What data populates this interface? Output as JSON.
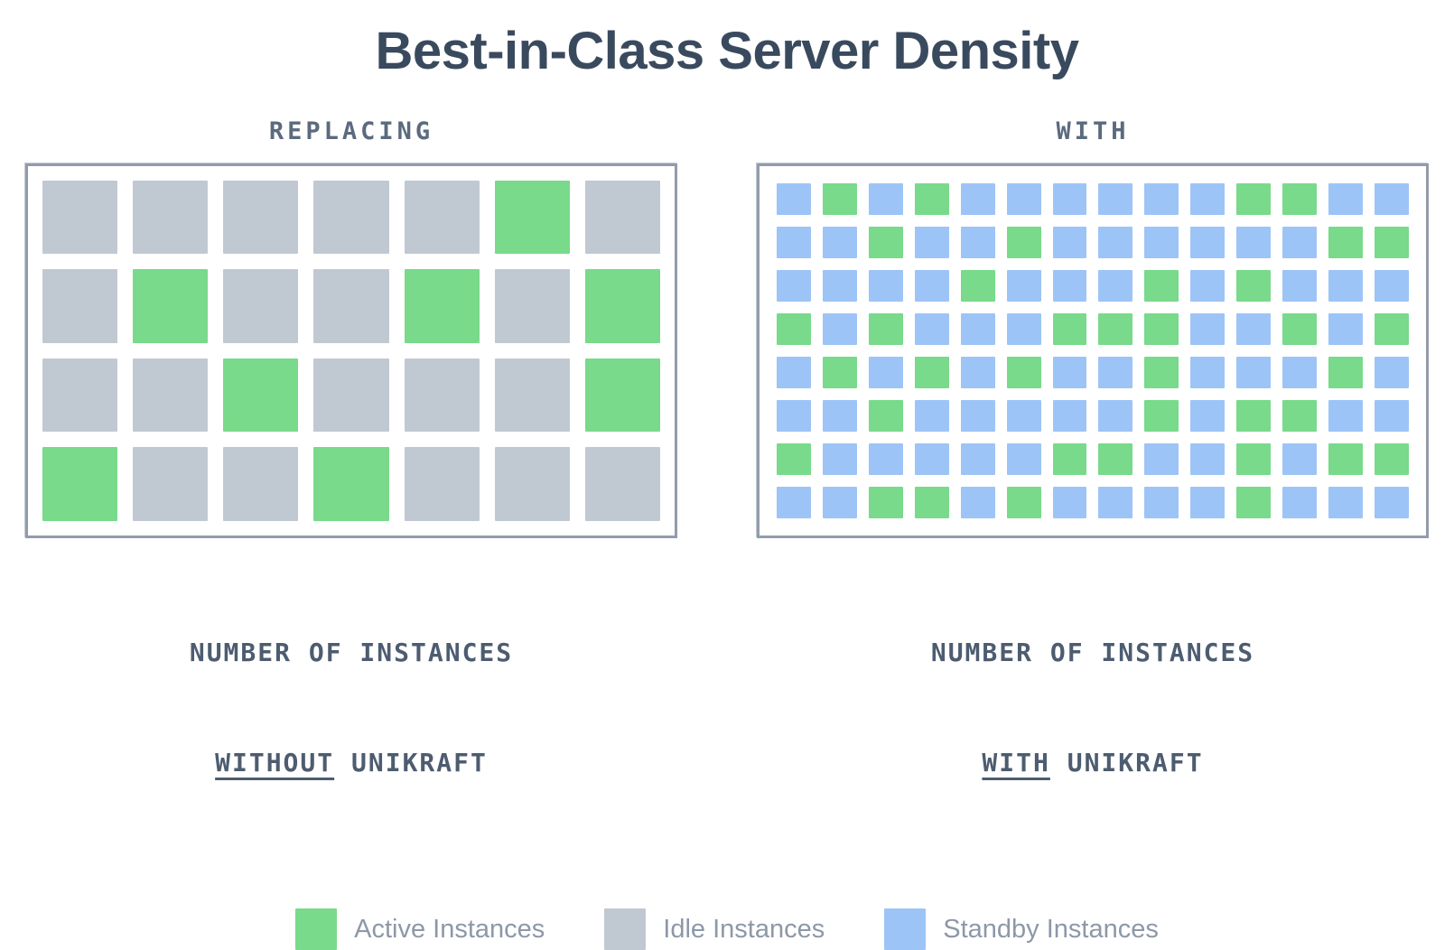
{
  "title": "Best-in-Class Server Density",
  "cell_types": {
    "A": "active",
    "I": "idle",
    "S": "standby"
  },
  "colors": {
    "active": "#78da8a",
    "idle": "#c0c9d2",
    "standby": "#9dc4f6",
    "title_text": "#3a4a5e",
    "heading_text": "#5c6a7e",
    "caption_text": "#4d5c70",
    "legend_text": "#8d98a8",
    "panel_border": "#929cab",
    "background": "#ffffff"
  },
  "panels": [
    {
      "id": "without-unikraft",
      "heading": "REPLACING",
      "caption": {
        "line1": "NUMBER OF INSTANCES",
        "underline": "WITHOUT",
        "after": " UNIKRAFT"
      },
      "grid": {
        "columns": 7,
        "rows": [
          "IIIIIAI",
          "IAIIAIA",
          "IIAIIIA",
          "AIIAIII"
        ]
      }
    },
    {
      "id": "with-unikraft",
      "heading": "WITH",
      "caption": {
        "line1": "NUMBER OF INSTANCES",
        "underline": "WITH",
        "after": " UNIKRAFT"
      },
      "grid": {
        "columns": 14,
        "rows": [
          "SASASSSSSSAASS",
          "SSASSASSSSSSAA",
          "SSSSASSSASASSS",
          "ASASSSAAASSASA",
          "SASASASSASSSAS",
          "SSASSSSSASAASS",
          "ASSSSSAASSASAA",
          "SSAASASSSSASSS"
        ]
      }
    }
  ],
  "legend": [
    {
      "key": "active",
      "label": "Active Instances",
      "color": "#78da8a"
    },
    {
      "key": "idle",
      "label": "Idle Instances",
      "color": "#c0c9d2"
    },
    {
      "key": "standby",
      "label": "Standby Instances",
      "color": "#9dc4f6"
    }
  ],
  "chart_data": [
    {
      "type": "heatmap",
      "title": "REPLACING",
      "subtitle": "NUMBER OF INSTANCES WITHOUT UNIKRAFT",
      "columns": 7,
      "rows": 4,
      "cell_values": [
        [
          "idle",
          "idle",
          "idle",
          "idle",
          "idle",
          "active",
          "idle"
        ],
        [
          "idle",
          "active",
          "idle",
          "idle",
          "active",
          "idle",
          "active"
        ],
        [
          "idle",
          "idle",
          "active",
          "idle",
          "idle",
          "idle",
          "active"
        ],
        [
          "active",
          "idle",
          "idle",
          "active",
          "idle",
          "idle",
          "idle"
        ]
      ],
      "counts": {
        "active": 8,
        "idle": 20,
        "standby": 0,
        "total": 28
      },
      "legend_position": "bottom"
    },
    {
      "type": "heatmap",
      "title": "WITH",
      "subtitle": "NUMBER OF INSTANCES WITH UNIKRAFT",
      "columns": 14,
      "rows": 8,
      "cell_values": [
        [
          "standby",
          "active",
          "standby",
          "active",
          "standby",
          "standby",
          "standby",
          "standby",
          "standby",
          "standby",
          "active",
          "active",
          "standby",
          "standby"
        ],
        [
          "standby",
          "standby",
          "active",
          "standby",
          "standby",
          "active",
          "standby",
          "standby",
          "standby",
          "standby",
          "standby",
          "standby",
          "active",
          "active"
        ],
        [
          "standby",
          "standby",
          "standby",
          "standby",
          "active",
          "standby",
          "standby",
          "standby",
          "active",
          "standby",
          "active",
          "standby",
          "standby",
          "standby"
        ],
        [
          "active",
          "standby",
          "active",
          "standby",
          "standby",
          "standby",
          "active",
          "active",
          "active",
          "standby",
          "standby",
          "active",
          "standby",
          "active"
        ],
        [
          "standby",
          "active",
          "standby",
          "active",
          "standby",
          "active",
          "standby",
          "standby",
          "active",
          "standby",
          "standby",
          "standby",
          "active",
          "standby"
        ],
        [
          "standby",
          "standby",
          "active",
          "standby",
          "standby",
          "standby",
          "standby",
          "standby",
          "active",
          "standby",
          "active",
          "active",
          "standby",
          "standby"
        ],
        [
          "active",
          "standby",
          "standby",
          "standby",
          "standby",
          "standby",
          "active",
          "active",
          "standby",
          "standby",
          "active",
          "standby",
          "active",
          "active"
        ],
        [
          "standby",
          "standby",
          "active",
          "active",
          "standby",
          "active",
          "standby",
          "standby",
          "standby",
          "standby",
          "active",
          "standby",
          "standby",
          "standby"
        ]
      ],
      "counts": {
        "active": 37,
        "idle": 0,
        "standby": 75,
        "total": 112
      },
      "legend_position": "bottom"
    }
  ]
}
